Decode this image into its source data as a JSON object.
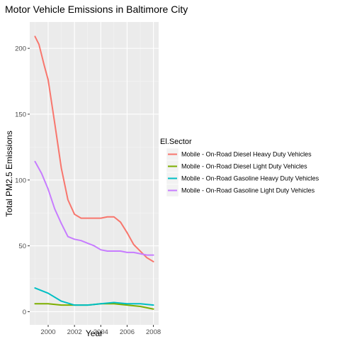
{
  "chart_data": {
    "type": "line",
    "title": "Motor Vehicle Emissions in Baltimore City",
    "xlabel": "Year",
    "ylabel": "Total PM2.5 Emissions",
    "xlim": [
      1998.6,
      2008.4
    ],
    "ylim": [
      -10,
      220
    ],
    "x_ticks": [
      2000,
      2002,
      2004,
      2006,
      2008
    ],
    "x_tick_labels": [
      "2000",
      "2002",
      "2004",
      "2006",
      "2008"
    ],
    "y_ticks": [
      0,
      50,
      100,
      150,
      200
    ],
    "y_tick_labels": [
      "0",
      "50",
      "100",
      "150",
      "200"
    ],
    "grid": true,
    "legend": {
      "title": "El.Sector",
      "placement": "right"
    },
    "series": [
      {
        "name": "Mobile - On-Road Diesel Heavy Duty Vehicles",
        "color": "#F8766D",
        "points": [
          [
            1999,
            209
          ],
          [
            1999.3,
            203
          ],
          [
            1999.7,
            187
          ],
          [
            2000,
            176
          ],
          [
            2000.5,
            143
          ],
          [
            2001,
            109
          ],
          [
            2001.5,
            85
          ],
          [
            2002,
            74
          ],
          [
            2002.5,
            71
          ],
          [
            2003,
            71
          ],
          [
            2003.5,
            71
          ],
          [
            2004,
            71
          ],
          [
            2004.5,
            72
          ],
          [
            2005,
            72
          ],
          [
            2005.5,
            68
          ],
          [
            2006,
            60
          ],
          [
            2006.5,
            51
          ],
          [
            2007,
            46
          ],
          [
            2007.5,
            41
          ],
          [
            2008,
            38
          ]
        ]
      },
      {
        "name": "Mobile - On-Road Diesel Light Duty Vehicles",
        "color": "#7CAE00",
        "points": [
          [
            1999,
            6
          ],
          [
            2000,
            6
          ],
          [
            2001,
            5
          ],
          [
            2002,
            5
          ],
          [
            2003,
            5
          ],
          [
            2004,
            6
          ],
          [
            2005,
            6
          ],
          [
            2006,
            5
          ],
          [
            2007,
            4
          ],
          [
            2008,
            2
          ]
        ]
      },
      {
        "name": "Mobile - On-Road Gasoline Heavy Duty Vehicles",
        "color": "#00BFC4",
        "points": [
          [
            1999,
            18
          ],
          [
            2000,
            14
          ],
          [
            2001,
            8
          ],
          [
            2002,
            5
          ],
          [
            2003,
            5
          ],
          [
            2004,
            6
          ],
          [
            2005,
            7
          ],
          [
            2006,
            6
          ],
          [
            2007,
            6
          ],
          [
            2008,
            5
          ]
        ]
      },
      {
        "name": "Mobile - On-Road Gasoline Light Duty Vehicles",
        "color": "#C77CFF",
        "points": [
          [
            1999,
            114
          ],
          [
            1999.5,
            105
          ],
          [
            2000,
            93
          ],
          [
            2000.5,
            78
          ],
          [
            2001,
            67
          ],
          [
            2001.5,
            57
          ],
          [
            2002,
            55
          ],
          [
            2002.5,
            54
          ],
          [
            2003,
            52
          ],
          [
            2003.5,
            50
          ],
          [
            2004,
            47
          ],
          [
            2004.5,
            46
          ],
          [
            2005,
            46
          ],
          [
            2005.5,
            46
          ],
          [
            2006,
            45
          ],
          [
            2006.5,
            45
          ],
          [
            2007,
            44
          ],
          [
            2007.5,
            43
          ],
          [
            2008,
            43
          ]
        ]
      }
    ]
  }
}
